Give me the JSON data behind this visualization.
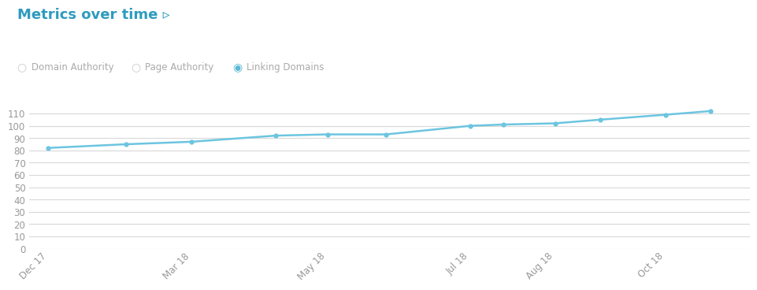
{
  "title": "Metrics over time ▹",
  "title_color": "#2e9bbf",
  "title_fontsize": 13,
  "background_color": "#ffffff",
  "legend_items": [
    "Domain Authority",
    "Page Authority",
    "Linking Domains"
  ],
  "x_labels": [
    "Dec 17",
    "Mar 18",
    "May 18",
    "Jul 18",
    "Aug 18",
    "Oct 18"
  ],
  "y_data": [
    82,
    85,
    87,
    92,
    93,
    93,
    100,
    101,
    102,
    105,
    109,
    112
  ],
  "x_data": [
    0,
    1.2,
    2.2,
    3.5,
    4.3,
    5.2,
    6.5,
    7.0,
    7.8,
    8.5,
    9.5,
    10.2
  ],
  "x_tick_positions": [
    0,
    2.2,
    4.3,
    6.5,
    7.8,
    9.5
  ],
  "ylim": [
    0,
    120
  ],
  "yticks": [
    0,
    10,
    20,
    30,
    40,
    50,
    60,
    70,
    80,
    90,
    100,
    110
  ],
  "grid_color": "#d8d8d8",
  "line_color": "#6cc5e0",
  "marker_color": "#6cc5e0",
  "xlim": [
    -0.3,
    10.8
  ],
  "tick_label_color": "#999999",
  "tick_fontsize": 8.5
}
